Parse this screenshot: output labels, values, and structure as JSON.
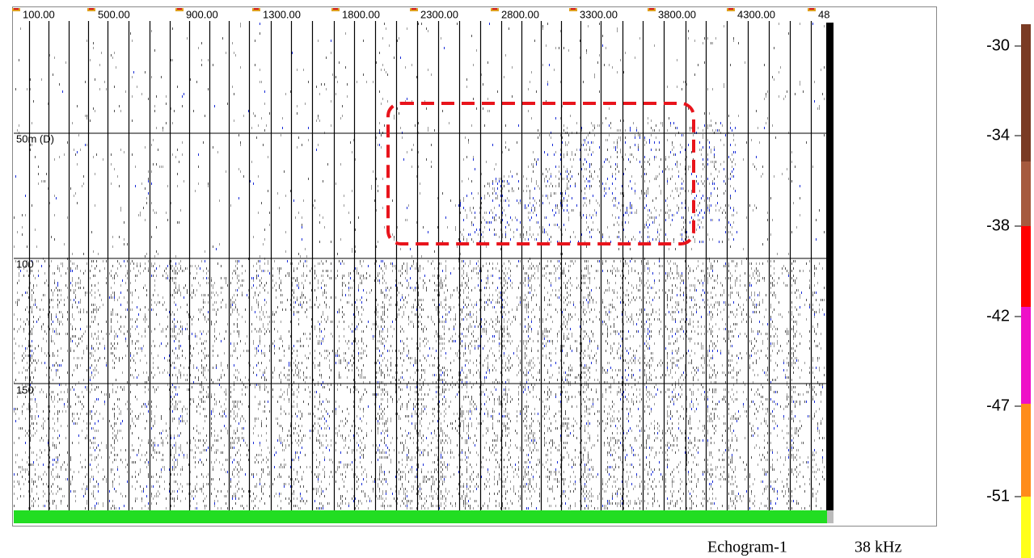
{
  "top_scale_labels": [
    "100.00",
    "500.00",
    "900.00",
    "1300.00",
    "1800.00",
    "2300.00",
    "2800.00",
    "3300.00",
    "3800.00",
    "4300.00",
    "48"
  ],
  "depth_labels": [
    "50m (D)",
    "100",
    "150"
  ],
  "color_scale_labels": [
    "-30",
    "-34",
    "-38",
    "-42",
    "-47",
    "-51"
  ],
  "caption": {
    "name": "Echogram-1",
    "frequency": "38 kHz"
  }
}
